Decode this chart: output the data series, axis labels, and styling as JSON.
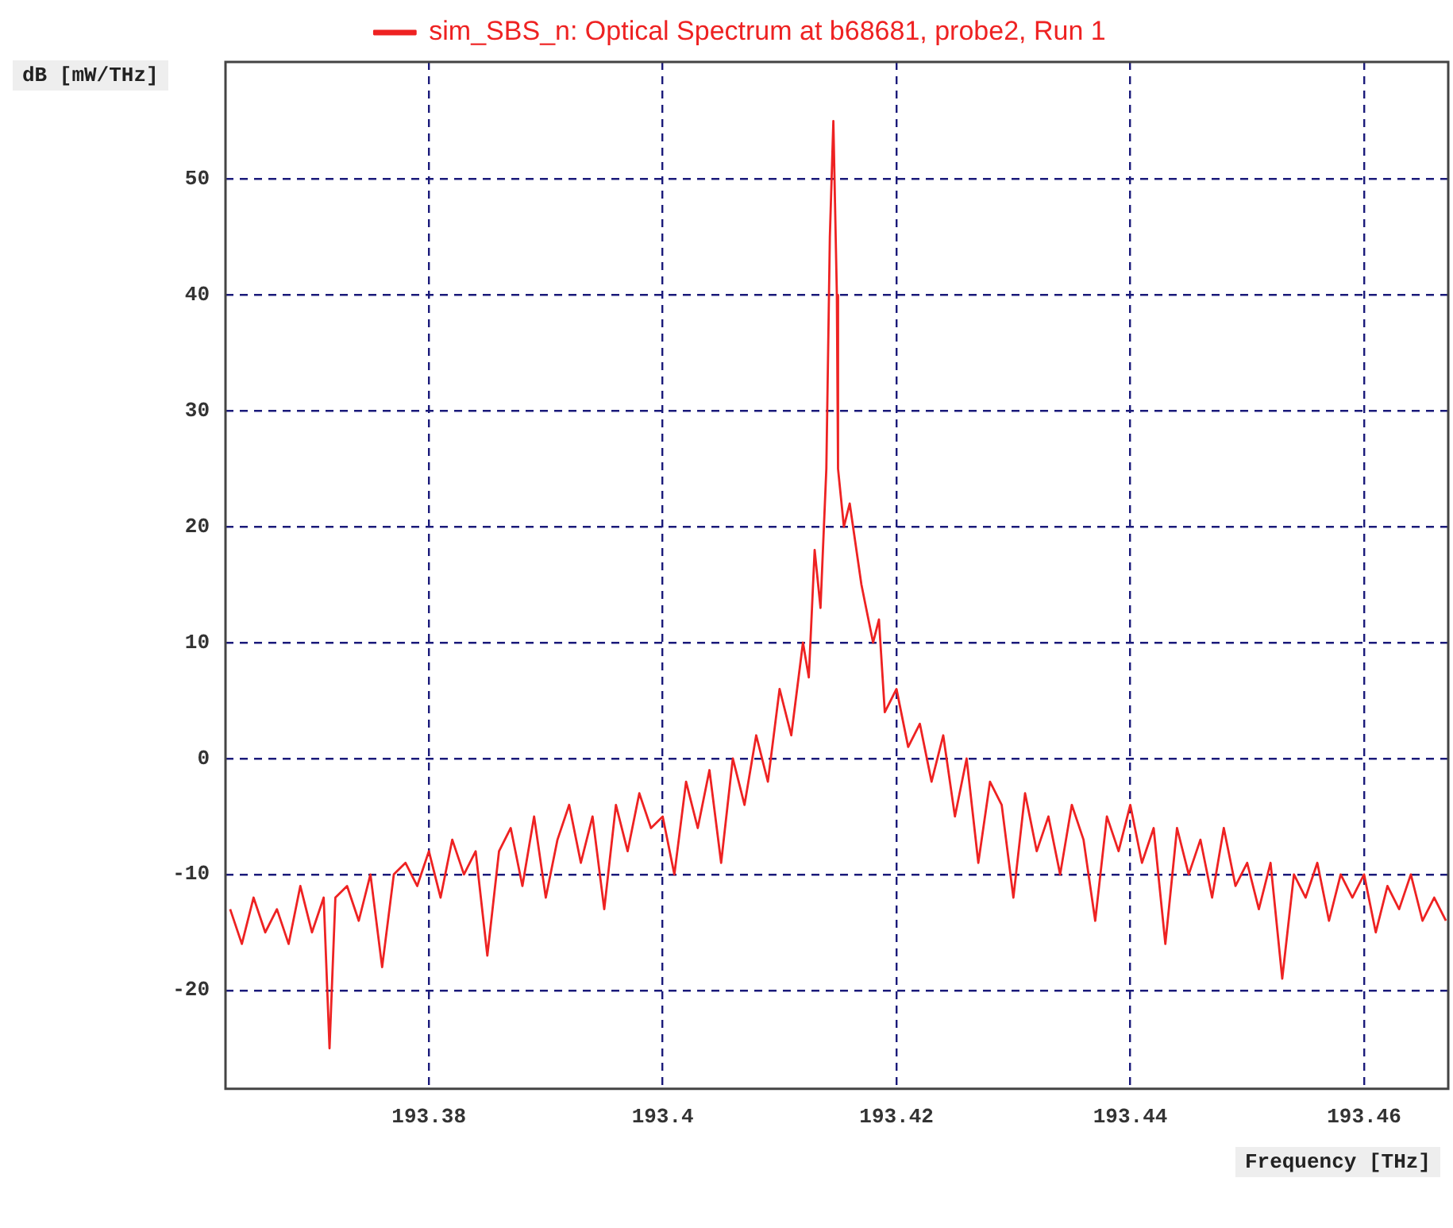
{
  "chart_data": {
    "type": "line",
    "xlabel": "Frequency [THz]",
    "ylabel": "dB [mW/THz]",
    "x": [
      193.363,
      193.364,
      193.365,
      193.366,
      193.367,
      193.368,
      193.369,
      193.37,
      193.371,
      193.3715,
      193.372,
      193.373,
      193.374,
      193.375,
      193.376,
      193.377,
      193.378,
      193.379,
      193.38,
      193.381,
      193.382,
      193.383,
      193.384,
      193.385,
      193.386,
      193.387,
      193.388,
      193.389,
      193.39,
      193.391,
      193.392,
      193.393,
      193.394,
      193.395,
      193.396,
      193.397,
      193.398,
      193.399,
      193.4,
      193.401,
      193.402,
      193.403,
      193.404,
      193.405,
      193.406,
      193.407,
      193.408,
      193.409,
      193.41,
      193.411,
      193.412,
      193.4125,
      193.413,
      193.4135,
      193.414,
      193.4143,
      193.4146,
      193.4149,
      193.415,
      193.4155,
      193.416,
      193.417,
      193.418,
      193.4185,
      193.419,
      193.42,
      193.421,
      193.422,
      193.423,
      193.424,
      193.425,
      193.426,
      193.427,
      193.428,
      193.429,
      193.43,
      193.431,
      193.432,
      193.433,
      193.434,
      193.435,
      193.436,
      193.437,
      193.438,
      193.439,
      193.44,
      193.441,
      193.442,
      193.443,
      193.444,
      193.445,
      193.446,
      193.447,
      193.448,
      193.449,
      193.45,
      193.451,
      193.452,
      193.453,
      193.454,
      193.455,
      193.456,
      193.457,
      193.458,
      193.459,
      193.46,
      193.461,
      193.462,
      193.463,
      193.464,
      193.465,
      193.466,
      193.467
    ],
    "series": [
      {
        "name": "sim_SBS_n: Optical Spectrum at b68681, probe2, Run 1",
        "color": "#ee2222",
        "values": [
          -13,
          -16,
          -12,
          -15,
          -13,
          -16,
          -11,
          -15,
          -12,
          -25,
          -12,
          -11,
          -14,
          -10,
          -18,
          -10,
          -9,
          -11,
          -8,
          -12,
          -7,
          -10,
          -8,
          -17,
          -8,
          -6,
          -11,
          -5,
          -12,
          -7,
          -4,
          -9,
          -5,
          -13,
          -4,
          -8,
          -3,
          -6,
          -5,
          -10,
          -2,
          -6,
          -1,
          -9,
          0,
          -4,
          2,
          -2,
          6,
          2,
          10,
          7,
          18,
          13,
          25,
          45,
          55,
          40,
          25,
          20,
          22,
          15,
          10,
          12,
          4,
          6,
          1,
          3,
          -2,
          2,
          -5,
          0,
          -9,
          -2,
          -4,
          -12,
          -3,
          -8,
          -5,
          -10,
          -4,
          -7,
          -14,
          -5,
          -8,
          -4,
          -9,
          -6,
          -16,
          -6,
          -10,
          -7,
          -12,
          -6,
          -11,
          -9,
          -13,
          -9,
          -19,
          -10,
          -12,
          -9,
          -14,
          -10,
          -12,
          -10,
          -15,
          -11,
          -13,
          -10,
          -14,
          -12,
          -14
        ]
      }
    ],
    "xlim": [
      193.3626,
      193.4672
    ],
    "xticks": [
      193.38,
      193.4,
      193.42,
      193.44,
      193.46
    ],
    "ylim": [
      -28.5,
      60.1
    ],
    "yticks": [
      -20,
      -10,
      0,
      10,
      20,
      30,
      40,
      50
    ],
    "grid": true,
    "legend": "top",
    "marker": "none",
    "line_style": "solid"
  }
}
